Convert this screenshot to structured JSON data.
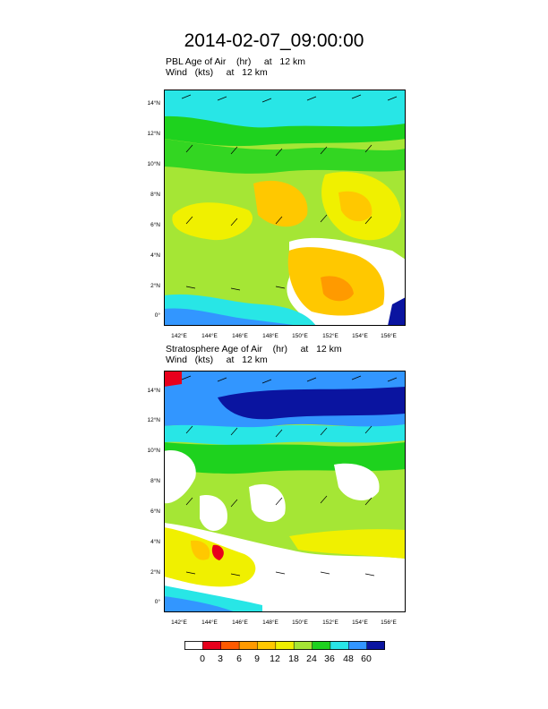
{
  "title": "2014-02-07_09:00:00",
  "panels": [
    {
      "field_line": "PBL Age of Air    (hr)     at   12 km",
      "wind_line": "Wind   (kts)     at   12 km"
    },
    {
      "field_line": "Stratosphere Age of Air    (hr)     at   12 km",
      "wind_line": "Wind   (kts)     at   12 km"
    }
  ],
  "map": {
    "lat_labels": [
      "14°N",
      "12°N",
      "10°N",
      "8°N",
      "6°N",
      "4°N",
      "2°N",
      "0°"
    ],
    "lon_labels": [
      "142°E",
      "144°E",
      "146°E",
      "148°E",
      "150°E",
      "152°E",
      "154°E",
      "156°E"
    ],
    "lat_range": [
      -0.8,
      15.3
    ],
    "lon_range": [
      140.5,
      157.2
    ]
  },
  "colorbar": {
    "levels": [
      "0",
      "3",
      "6",
      "9",
      "12",
      "18",
      "24",
      "36",
      "48",
      "60"
    ],
    "colors": [
      "#ffffff",
      "#e8001c",
      "#ff5a00",
      "#ff9a00",
      "#ffc800",
      "#f0f000",
      "#a5e635",
      "#1ed21e",
      "#28e6e6",
      "#3296ff",
      "#0a14a0"
    ]
  }
}
